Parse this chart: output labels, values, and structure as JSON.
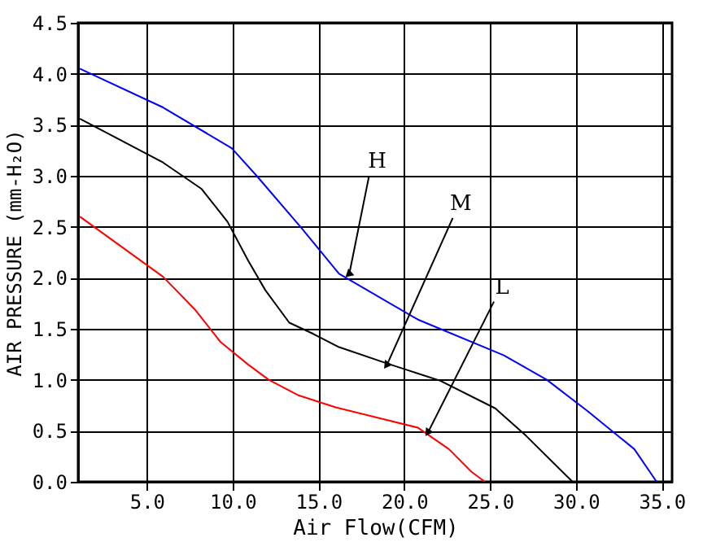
{
  "chart_data": {
    "type": "line",
    "xlabel": "Air Flow(CFM)",
    "ylabel": "AIR PRESSURE (mm-H₂O)",
    "xlim": [
      1.0,
      35.6
    ],
    "ylim": [
      0,
      4.5
    ],
    "xticks": [
      {
        "value": 5,
        "label": "5.0"
      },
      {
        "value": 10,
        "label": "10.0"
      },
      {
        "value": 15,
        "label": "15.0"
      },
      {
        "value": 20,
        "label": "20.0"
      },
      {
        "value": 25,
        "label": "25.0"
      },
      {
        "value": 30,
        "label": "30.0"
      },
      {
        "value": 35,
        "label": "35.0"
      }
    ],
    "yticks": [
      {
        "value": 0,
        "label": "0.0"
      },
      {
        "value": 0.5,
        "label": "0.5"
      },
      {
        "value": 1,
        "label": "1.0"
      },
      {
        "value": 1.5,
        "label": "1.5"
      },
      {
        "value": 2,
        "label": "2.0"
      },
      {
        "value": 2.5,
        "label": "2.5"
      },
      {
        "value": 3,
        "label": "3.0"
      },
      {
        "value": 3.5,
        "label": "3.5"
      },
      {
        "value": 4,
        "label": "4.0"
      },
      {
        "value": 4.5,
        "label": "4.5"
      }
    ],
    "grid": true,
    "marker": "none",
    "line_style": "solid",
    "series": [
      {
        "color": "#0000ff",
        "x": [
          1.1,
          5.95,
          9.95,
          11.4,
          14.0,
          16.2,
          20.8,
          25.8,
          28.3,
          30.7,
          33.4,
          34.7
        ],
        "values": [
          4.05,
          3.67,
          3.27,
          3.0,
          2.49,
          2.04,
          1.59,
          1.24,
          1.0,
          0.69,
          0.32,
          0
        ]
      },
      {
        "color": "#000000",
        "x": [
          1.1,
          5.95,
          8.2,
          9.7,
          10.9,
          11.9,
          13.3,
          14.7,
          16.2,
          19.0,
          22.1,
          25.3,
          27.1,
          29.8
        ],
        "values": [
          3.56,
          3.13,
          2.87,
          2.55,
          2.17,
          1.88,
          1.56,
          1.45,
          1.32,
          1.16,
          0.99,
          0.72,
          0.45,
          0
        ]
      },
      {
        "color": "#ff0000",
        "x": [
          1.1,
          5.95,
          7.8,
          9.3,
          10.9,
          12.1,
          13.8,
          16.0,
          20.8,
          22.6,
          23.9,
          24.7
        ],
        "values": [
          2.6,
          2.01,
          1.69,
          1.37,
          1.15,
          1.0,
          0.85,
          0.73,
          0.53,
          0.32,
          0.1,
          0
        ]
      }
    ],
    "annotations": [
      {
        "text": "H",
        "x": 16.8,
        "y": 2.04
      },
      {
        "text": "M",
        "x": 19.0,
        "y": 1.15
      },
      {
        "text": "L",
        "x": 21.4,
        "y": 0.49
      }
    ]
  }
}
